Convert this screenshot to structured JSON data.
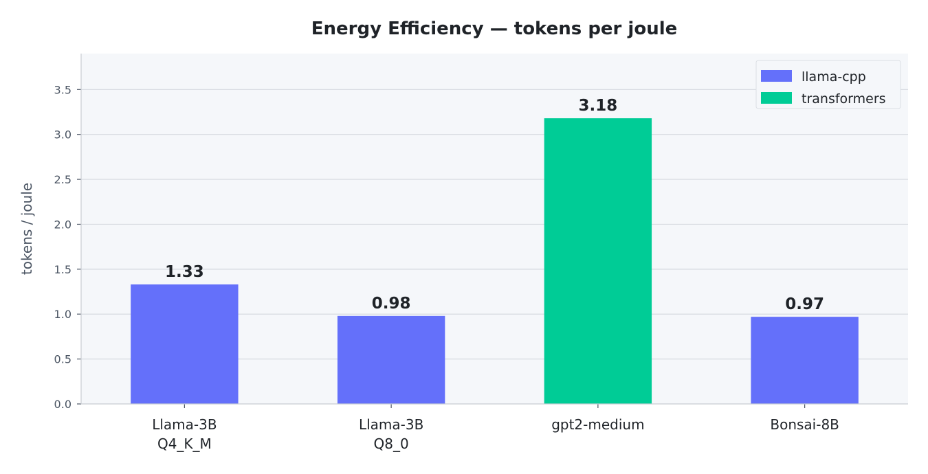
{
  "chart_data": {
    "type": "bar",
    "title": "Energy Efficiency  —  tokens per joule",
    "xlabel": "",
    "ylabel": "tokens / joule",
    "ylim": [
      0,
      3.9
    ],
    "yticks": [
      0.0,
      0.5,
      1.0,
      1.5,
      2.0,
      2.5,
      3.0,
      3.5
    ],
    "ytick_labels": [
      "0.0",
      "0.5",
      "1.0",
      "1.5",
      "2.0",
      "2.5",
      "3.0",
      "3.5"
    ],
    "categories": [
      [
        "Llama-3B",
        "Q4_K_M"
      ],
      [
        "Llama-3B",
        "Q8_0"
      ],
      [
        "gpt2-medium"
      ],
      [
        "Bonsai-8B"
      ]
    ],
    "values": [
      1.33,
      0.98,
      3.18,
      0.97
    ],
    "value_labels": [
      "1.33",
      "0.98",
      "3.18",
      "0.97"
    ],
    "bar_series": [
      "llama-cpp",
      "llama-cpp",
      "transformers",
      "llama-cpp"
    ],
    "series": [
      {
        "name": "llama-cpp",
        "color": "#6470fa"
      },
      {
        "name": "transformers",
        "color": "#00cc96"
      }
    ],
    "grid": true,
    "legend_position": "top-right",
    "colors": {
      "plot_bg": "#f5f7fa",
      "grid": "#d5d9df",
      "axis": "#c8ccd2"
    }
  }
}
